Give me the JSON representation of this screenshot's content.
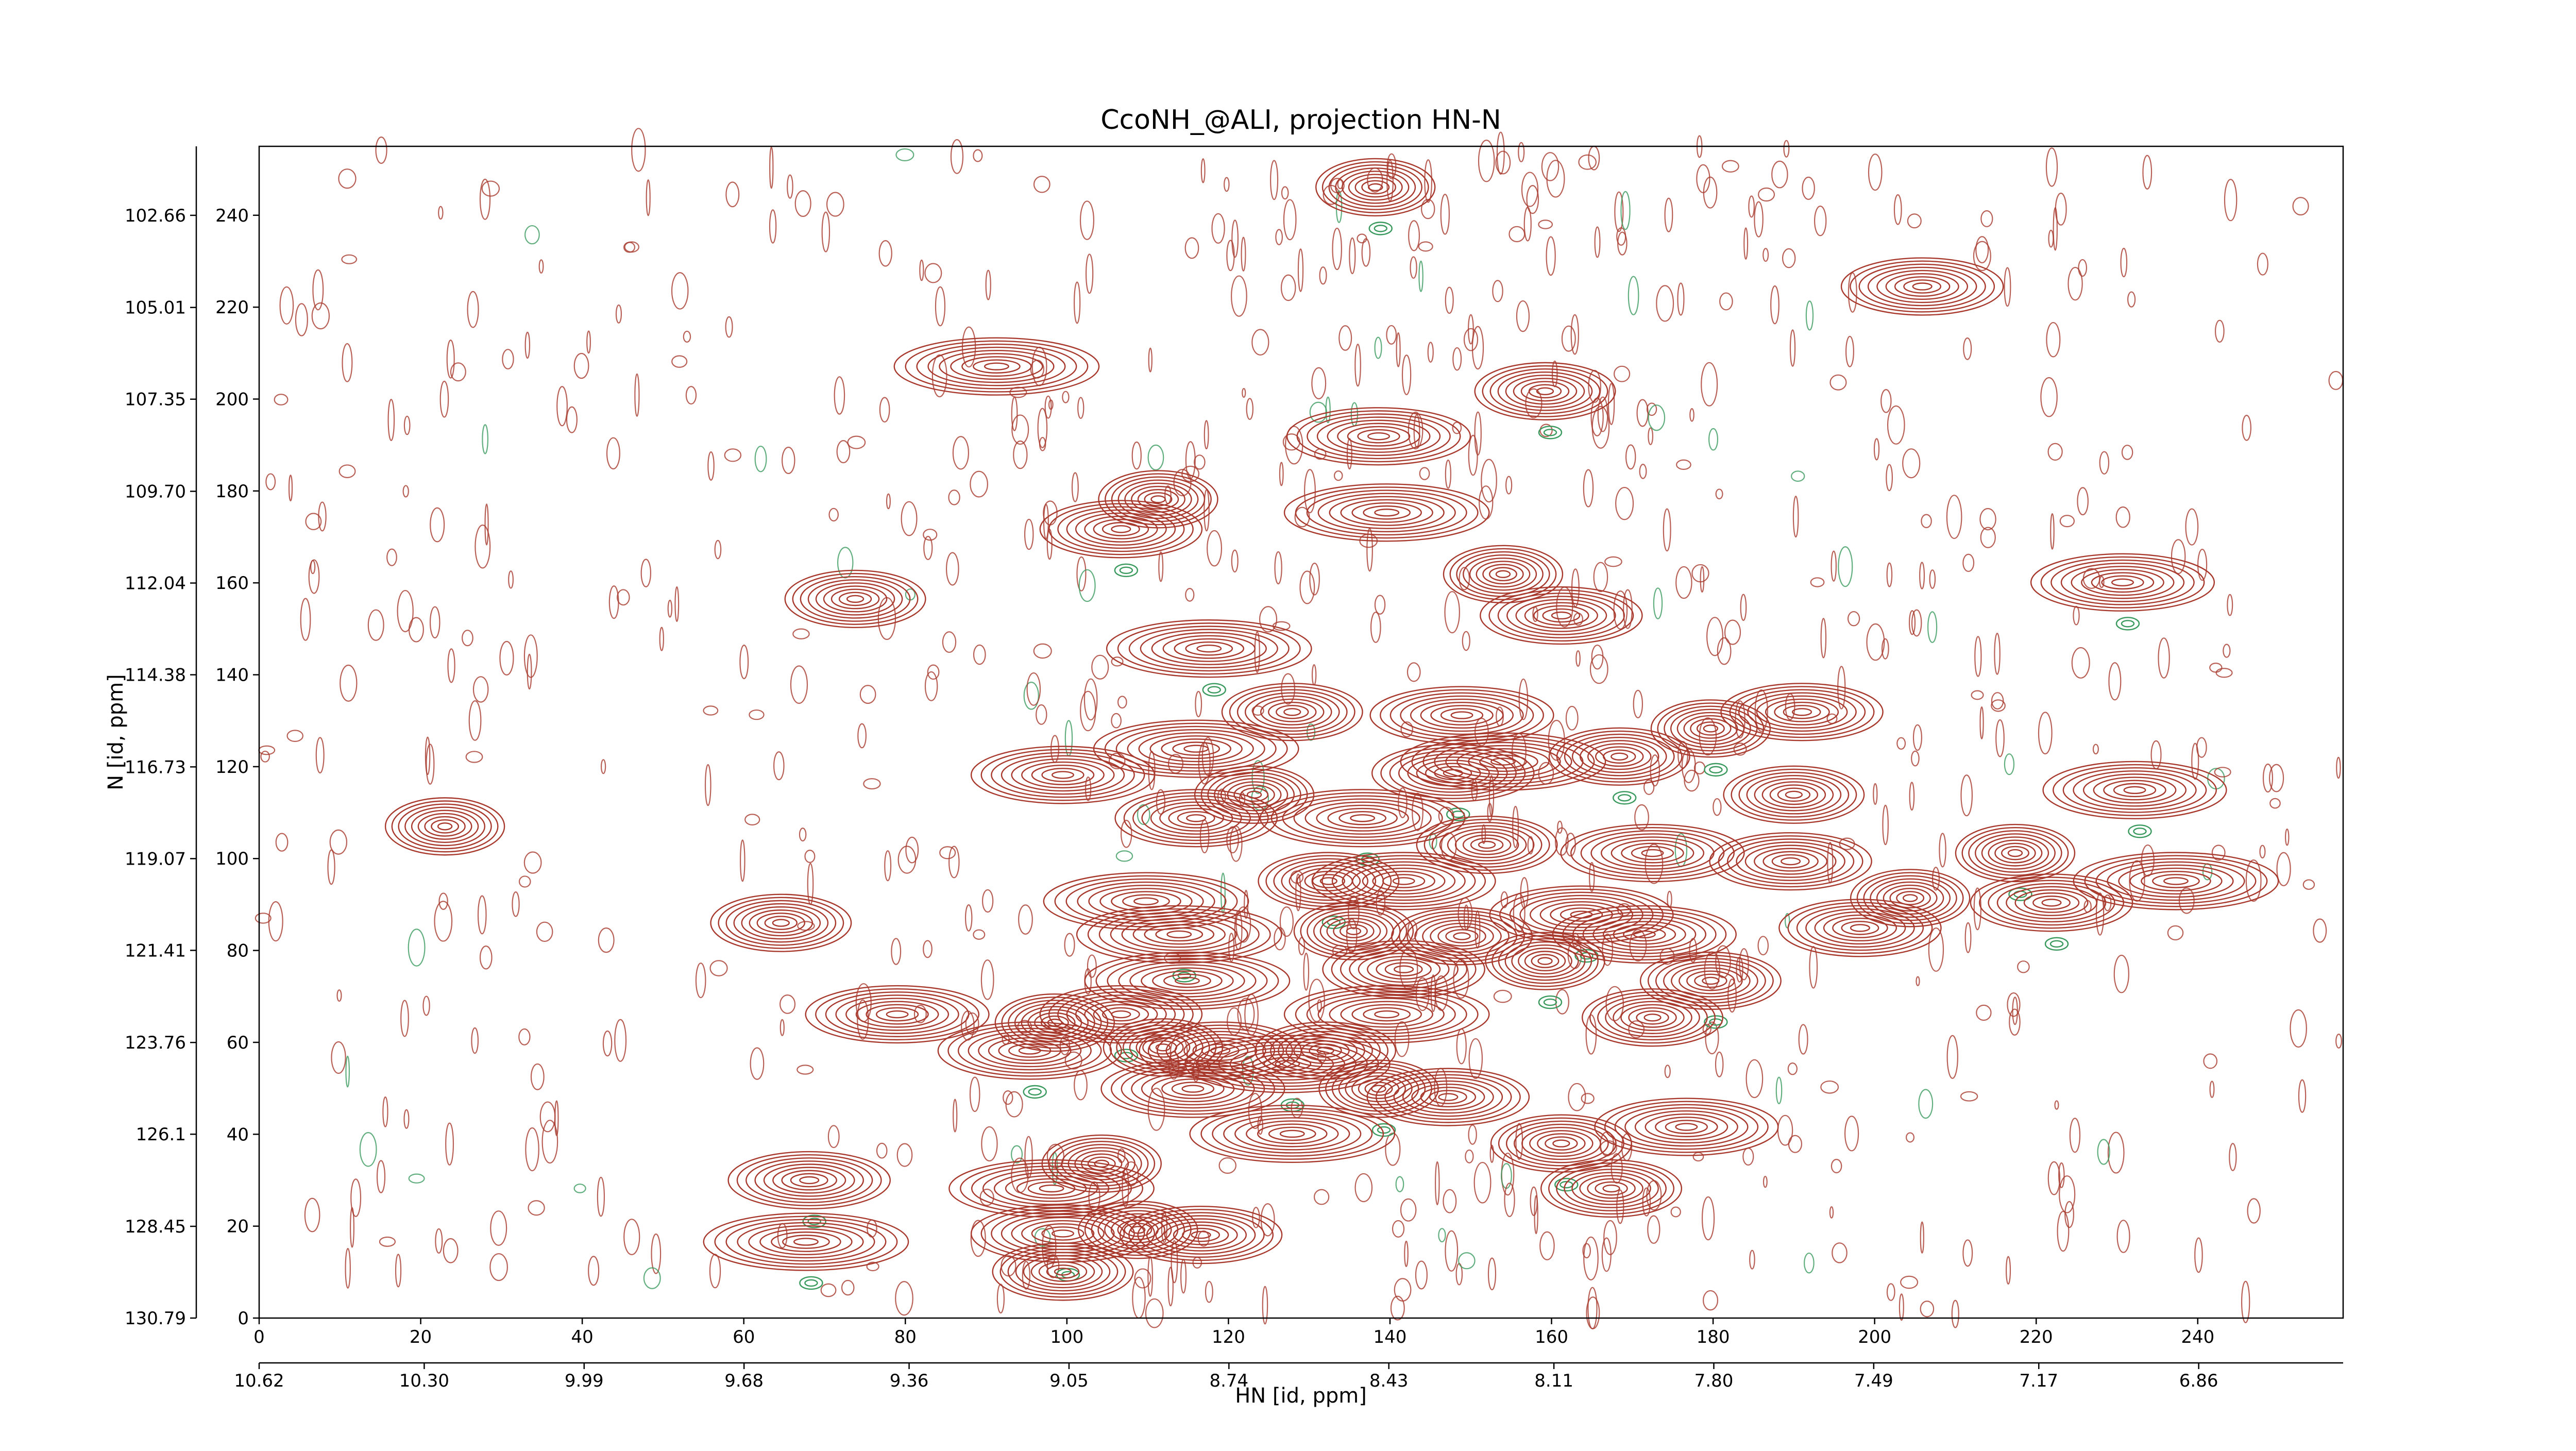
{
  "chart_data": {
    "type": "contour",
    "title": "CcoNH_@ALI, projection HN-N",
    "xlabel": "HN [id, ppm]",
    "ylabel": "N [id, ppm]",
    "xlim": [
      0,
      258
    ],
    "ylim": [
      0,
      255
    ],
    "xticks": [
      0,
      20,
      40,
      60,
      80,
      100,
      120,
      140,
      160,
      180,
      200,
      220,
      240
    ],
    "yticks": [
      0,
      20,
      40,
      60,
      80,
      100,
      120,
      140,
      160,
      180,
      200,
      220,
      240
    ],
    "x2lim": [
      10.62,
      6.58
    ],
    "x2ticks": [
      10.62,
      {
        "value": 10.3,
        "label": "10.30"
      },
      9.99,
      9.68,
      9.36,
      9.05,
      8.74,
      8.43,
      8.11,
      {
        "value": 7.8,
        "label": "7.80"
      },
      7.49,
      7.17,
      6.86
    ],
    "y2lim": [
      130.79,
      100.9
    ],
    "y2ticks": [
      130.79,
      128.45,
      126.1,
      123.76,
      121.41,
      119.07,
      116.73,
      114.38,
      112.04,
      {
        "value": 109.7,
        "label": "109.70"
      },
      107.35,
      105.01,
      102.66
    ],
    "color": "#a8382c",
    "negative_color": "#3a9a5e",
    "x": [
      138.2,
      205.9,
      91.3,
      159.2,
      138.6,
      111.3,
      106.7,
      139.6,
      73.8,
      230.7,
      154.0,
      161.2,
      117.6,
      127.9,
      148.9,
      179.7,
      191.0,
      116.0,
      168.4,
      99.5,
      123.2,
      147.8,
      154.0,
      190.0,
      232.2,
      23.0,
      116.0,
      136.6,
      152.0,
      172.5,
      217.4,
      189.6,
      237.3,
      132.4,
      141.7,
      204.4,
      221.9,
      109.8,
      64.6,
      163.7,
      135.5,
      198.2,
      113.9,
      148.9,
      171.5,
      159.2,
      141.7,
      114.9,
      179.7,
      79.0,
      98.5,
      106.7,
      139.6,
      172.5,
      95.4,
      111.9,
      119.0,
      127.3,
      132.0,
      115.6,
      138.6,
      147.2,
      127.9,
      161.2,
      176.7,
      104.3,
      68.1,
      98.1,
      167.4,
      99.5,
      108.8,
      116.6,
      67.7,
      99.5
    ],
    "values": [
      246.1,
      224.5,
      207.1,
      201.7,
      191.9,
      178.2,
      171.7,
      175.3,
      156.5,
      160.1,
      161.9,
      152.9,
      145.7,
      131.9,
      131.2,
      128.3,
      131.9,
      123.9,
      122.2,
      118.2,
      113.9,
      118.6,
      121.1,
      113.9,
      114.9,
      107.0,
      108.8,
      108.8,
      103.0,
      101.2,
      101.2,
      99.4,
      95.1,
      95.1,
      95.1,
      91.4,
      90.4,
      90.7,
      86.0,
      87.8,
      84.2,
      84.9,
      83.5,
      83.1,
      83.5,
      77.7,
      75.9,
      73.4,
      73.4,
      66.1,
      64.3,
      66.1,
      66.1,
      65.4,
      58.2,
      58.9,
      58.2,
      55.3,
      58.2,
      49.9,
      49.9,
      48.1,
      40.1,
      38.0,
      41.6,
      33.6,
      30.0,
      28.2,
      28.2,
      18.4,
      19.2,
      18.1,
      16.6,
      10.1
    ]
  }
}
